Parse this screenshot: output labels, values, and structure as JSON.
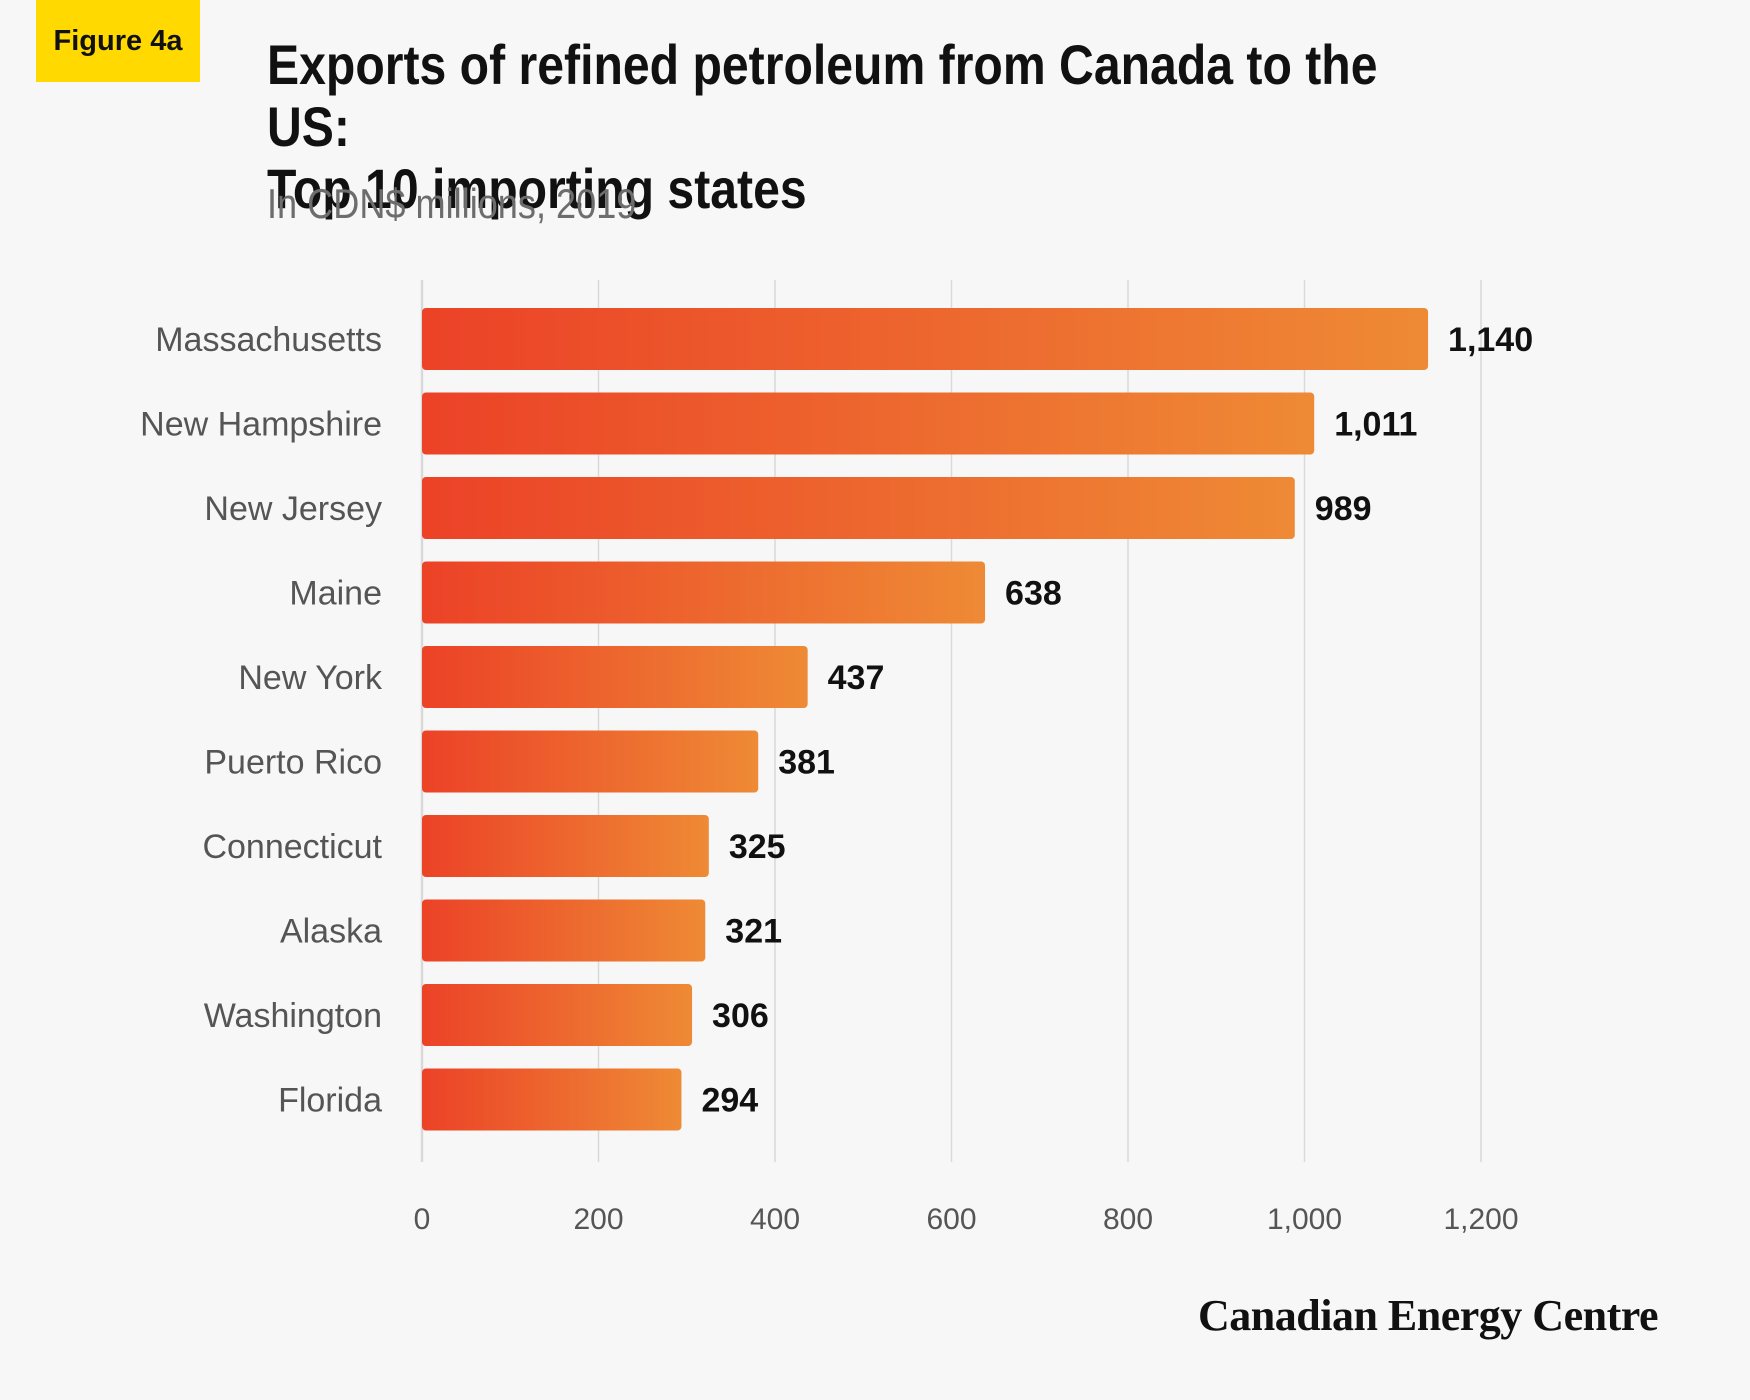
{
  "figure_label": "Figure 4a",
  "title_line1": "Exports of refined petroleum from Canada to the US:",
  "title_line2": "Top 10 importing states",
  "subtitle": "In CDN$ millions, 2019",
  "brand": "Canadian Energy Centre",
  "colors": {
    "bar_start": "#ec4227",
    "bar_end": "#ee8a35",
    "grid": "#d9d9d9",
    "category_text": "#555555",
    "value_text": "#111111",
    "tick_text": "#555555"
  },
  "chart_data": {
    "type": "bar",
    "orientation": "horizontal",
    "categories": [
      "Massachusetts",
      "New Hampshire",
      "New Jersey",
      "Maine",
      "New York",
      "Puerto Rico",
      "Connecticut",
      "Alaska",
      "Washington",
      "Florida"
    ],
    "values": [
      1140,
      1011,
      989,
      638,
      437,
      381,
      325,
      321,
      306,
      294
    ],
    "value_labels": [
      "1,140",
      "1,011",
      "989",
      "638",
      "437",
      "381",
      "325",
      "321",
      "306",
      "294"
    ],
    "xlim": [
      0,
      1200
    ],
    "xticks": [
      0,
      200,
      400,
      600,
      800,
      1000,
      1200
    ],
    "xtick_labels": [
      "0",
      "200",
      "400",
      "600",
      "800",
      "1,000",
      "1,200"
    ],
    "grid": true
  }
}
